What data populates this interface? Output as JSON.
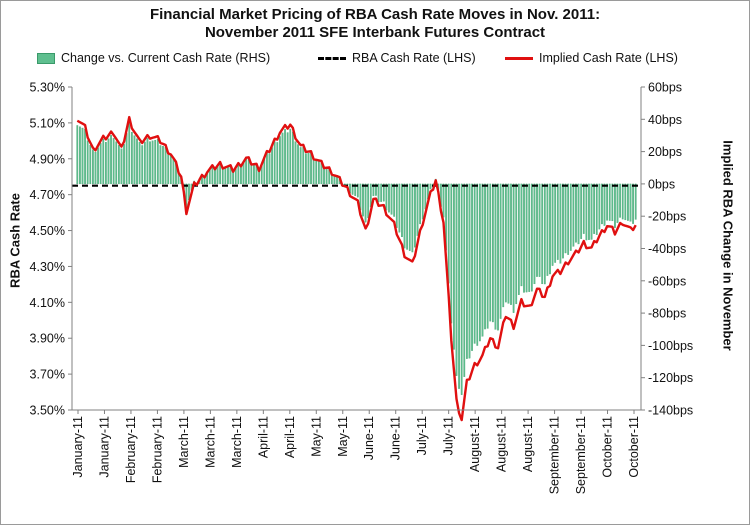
{
  "chart_data": {
    "type": "bar+line",
    "title_line1": "Financial Market Pricing of RBA Cash Rate Moves in Nov. 2011:",
    "title_line2": "November 2011 SFE Interbank Futures Contract",
    "ylabel_left": "RBA Cash Rate",
    "ylabel_right": "Implied RBA Change in November",
    "left_axis": {
      "min": 3.5,
      "max": 5.3,
      "step": 0.2,
      "ticks": [
        "3.50%",
        "3.70%",
        "3.90%",
        "4.10%",
        "4.30%",
        "4.50%",
        "4.70%",
        "4.90%",
        "5.10%",
        "5.30%"
      ]
    },
    "right_axis": {
      "min": -140,
      "max": 60,
      "step": 20,
      "ticks": [
        "-140bps",
        "-120bps",
        "-100bps",
        "-80bps",
        "-60bps",
        "-40bps",
        "-20bps",
        "0bps",
        "20bps",
        "40bps",
        "60bps"
      ]
    },
    "x_tick_labels": [
      "January-11",
      "January-11",
      "February-11",
      "February-11",
      "March-11",
      "March-11",
      "March-11",
      "April-11",
      "April-11",
      "May-11",
      "May-11",
      "June-11",
      "June-11",
      "July-11",
      "July-11",
      "August-11",
      "August-11",
      "August-11",
      "September-11",
      "September-11",
      "October-11",
      "October-11"
    ],
    "legend": [
      {
        "label": "Change vs. Current Cash Rate (RHS)",
        "style": "bar",
        "color": "#5fbf8f"
      },
      {
        "label": "RBA Cash Rate (LHS)",
        "style": "dashed",
        "color": "#000000"
      },
      {
        "label": "Implied Cash Rate (LHS)",
        "style": "line",
        "color": "#e01010"
      }
    ],
    "rba_cash_rate": 4.75,
    "implied_change_bps_keypoints": [
      [
        0,
        38
      ],
      [
        3,
        32
      ],
      [
        6,
        20
      ],
      [
        10,
        26
      ],
      [
        14,
        30
      ],
      [
        17,
        20
      ],
      [
        20,
        37
      ],
      [
        24,
        24
      ],
      [
        28,
        28
      ],
      [
        32,
        25
      ],
      [
        36,
        18
      ],
      [
        40,
        5
      ],
      [
        42,
        -14
      ],
      [
        45,
        0
      ],
      [
        50,
        8
      ],
      [
        55,
        12
      ],
      [
        60,
        9
      ],
      [
        65,
        15
      ],
      [
        70,
        10
      ],
      [
        74,
        20
      ],
      [
        78,
        30
      ],
      [
        82,
        34
      ],
      [
        86,
        22
      ],
      [
        90,
        18
      ],
      [
        94,
        12
      ],
      [
        98,
        8
      ],
      [
        101,
        3
      ],
      [
        104,
        -2
      ],
      [
        108,
        -10
      ],
      [
        111,
        -25
      ],
      [
        114,
        -8
      ],
      [
        118,
        -12
      ],
      [
        122,
        -22
      ],
      [
        126,
        -38
      ],
      [
        129,
        -44
      ],
      [
        133,
        -20
      ],
      [
        136,
        -5
      ],
      [
        138,
        3
      ],
      [
        141,
        -20
      ],
      [
        144,
        -85
      ],
      [
        146,
        -120
      ],
      [
        148,
        -130
      ],
      [
        150,
        -110
      ],
      [
        153,
        -100
      ],
      [
        156,
        -95
      ],
      [
        159,
        -85
      ],
      [
        162,
        -90
      ],
      [
        165,
        -72
      ],
      [
        168,
        -78
      ],
      [
        171,
        -65
      ],
      [
        174,
        -68
      ],
      [
        177,
        -58
      ],
      [
        180,
        -62
      ],
      [
        183,
        -50
      ],
      [
        186,
        -48
      ],
      [
        189,
        -42
      ],
      [
        192,
        -38
      ],
      [
        195,
        -32
      ],
      [
        198,
        -35
      ],
      [
        201,
        -28
      ],
      [
        204,
        -22
      ],
      [
        207,
        -26
      ],
      [
        210,
        -20
      ],
      [
        213,
        -25
      ],
      [
        215,
        -22
      ]
    ]
  }
}
